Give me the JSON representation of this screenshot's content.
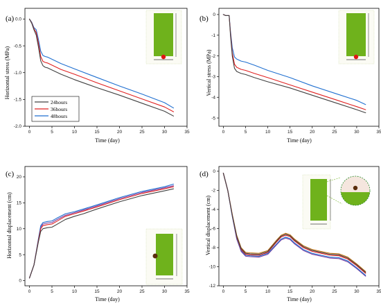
{
  "colors": {
    "h24": "#404040",
    "h36": "#e02020",
    "h48": "#1f6fd0",
    "green": "#6fb21c",
    "marker": "#e01515"
  },
  "chart_data": [
    {
      "id": "a",
      "panel_label": "(a)",
      "type": "line",
      "xlabel": "Time (day)",
      "ylabel": "Horizontal stress (MPa)",
      "xlim": [
        -1,
        35
      ],
      "ylim": [
        -2.0,
        0.2
      ],
      "xticks": [
        "0",
        "5",
        "10",
        "15",
        "20",
        "25",
        "30",
        "35"
      ],
      "yticks": [
        "0.0",
        "-0.5",
        "-1.0",
        "-1.5",
        "-2.0"
      ],
      "legend": {
        "position": "bottom-left",
        "entries": [
          "24hours",
          "36hours",
          "48hours"
        ]
      },
      "series": [
        {
          "name": "24hours",
          "color": "#404040",
          "x": [
            0,
            0.5,
            1,
            1.5,
            2,
            2.5,
            3,
            3.5,
            4,
            5,
            7,
            10,
            15,
            20,
            25,
            30,
            32
          ],
          "y": [
            0,
            -0.08,
            -0.2,
            -0.3,
            -0.52,
            -0.78,
            -0.87,
            -0.9,
            -0.91,
            -0.95,
            -1.03,
            -1.13,
            -1.28,
            -1.42,
            -1.57,
            -1.72,
            -1.81
          ]
        },
        {
          "name": "36hours",
          "color": "#e02020",
          "x": [
            0,
            0.5,
            1,
            1.5,
            2,
            2.5,
            3,
            3.5,
            4,
            5,
            7,
            10,
            15,
            20,
            25,
            30,
            32
          ],
          "y": [
            0,
            -0.07,
            -0.18,
            -0.25,
            -0.45,
            -0.7,
            -0.79,
            -0.81,
            -0.82,
            -0.86,
            -0.94,
            -1.03,
            -1.19,
            -1.34,
            -1.49,
            -1.64,
            -1.73
          ]
        },
        {
          "name": "48hours",
          "color": "#1f6fd0",
          "x": [
            0,
            0.5,
            1,
            1.5,
            2,
            2.5,
            3,
            3.5,
            4,
            5,
            7,
            10,
            15,
            20,
            25,
            30,
            32
          ],
          "y": [
            0,
            -0.06,
            -0.16,
            -0.2,
            -0.38,
            -0.6,
            -0.68,
            -0.7,
            -0.71,
            -0.75,
            -0.83,
            -0.93,
            -1.09,
            -1.25,
            -1.4,
            -1.56,
            -1.66
          ]
        }
      ]
    },
    {
      "id": "b",
      "panel_label": "(b)",
      "type": "line",
      "xlabel": "Time (day)",
      "ylabel": "Vertical stress (MPa)",
      "xlim": [
        -1,
        35
      ],
      "ylim": [
        -5.4,
        0.3
      ],
      "xticks": [
        "0",
        "5",
        "10",
        "15",
        "20",
        "25",
        "30",
        "35"
      ],
      "yticks": [
        "0",
        "-1",
        "-2",
        "-3",
        "-4",
        "-5"
      ],
      "series": [
        {
          "name": "24hours",
          "color": "#404040",
          "x": [
            0,
            0.5,
            1,
            1.3,
            1.6,
            2,
            2.5,
            3,
            3.5,
            4,
            5,
            7,
            10,
            15,
            20,
            25,
            30,
            32
          ],
          "y": [
            0,
            -0.05,
            -0.05,
            -0.05,
            -1.0,
            -2.0,
            -2.6,
            -2.75,
            -2.8,
            -2.85,
            -2.9,
            -3.05,
            -3.25,
            -3.55,
            -3.9,
            -4.25,
            -4.6,
            -4.75
          ]
        },
        {
          "name": "36hours",
          "color": "#e02020",
          "x": [
            0,
            0.5,
            1,
            1.3,
            1.6,
            2,
            2.5,
            3,
            3.5,
            4,
            5,
            7,
            10,
            15,
            20,
            25,
            30,
            32
          ],
          "y": [
            0,
            -0.05,
            -0.05,
            -0.05,
            -0.9,
            -1.85,
            -2.4,
            -2.55,
            -2.6,
            -2.65,
            -2.7,
            -2.85,
            -3.05,
            -3.4,
            -3.75,
            -4.1,
            -4.45,
            -4.6
          ]
        },
        {
          "name": "48hours",
          "color": "#1f6fd0",
          "x": [
            0,
            0.5,
            1,
            1.3,
            1.6,
            2,
            2.5,
            3,
            3.5,
            4,
            5,
            7,
            10,
            15,
            20,
            25,
            30,
            32
          ],
          "y": [
            0,
            -0.05,
            -0.05,
            -0.05,
            -0.8,
            -1.6,
            -2.05,
            -2.15,
            -2.2,
            -2.25,
            -2.3,
            -2.45,
            -2.7,
            -3.05,
            -3.45,
            -3.8,
            -4.15,
            -4.35
          ]
        }
      ]
    },
    {
      "id": "c",
      "panel_label": "(c)",
      "type": "line",
      "xlabel": "Time (day)",
      "ylabel": "Horizontal displacement (cm)",
      "xlim": [
        -1,
        35
      ],
      "ylim": [
        -1,
        22
      ],
      "xticks": [
        "0",
        "5",
        "10",
        "15",
        "20",
        "25",
        "30",
        "35"
      ],
      "yticks": [
        "0",
        "5",
        "10",
        "15",
        "20"
      ],
      "series": [
        {
          "name": "24hours",
          "color": "#404040",
          "x": [
            0,
            1,
            2,
            2.5,
            3,
            4,
            5,
            6,
            8,
            10,
            12,
            15,
            20,
            25,
            30,
            32
          ],
          "y": [
            0.5,
            3,
            7.5,
            9.5,
            10,
            10.2,
            10.3,
            10.8,
            11.8,
            12.4,
            12.9,
            13.8,
            15.2,
            16.4,
            17.3,
            17.7
          ]
        },
        {
          "name": "36hours",
          "color": "#e02020",
          "x": [
            0,
            1,
            2,
            2.5,
            3,
            4,
            5,
            6,
            8,
            10,
            12,
            15,
            20,
            25,
            30,
            32
          ],
          "y": [
            0.5,
            3,
            7.8,
            10,
            10.6,
            10.8,
            10.9,
            11.4,
            12.4,
            12.9,
            13.4,
            14.2,
            15.6,
            16.8,
            17.7,
            18.1
          ]
        },
        {
          "name": "48hours",
          "color": "#1f6fd0",
          "x": [
            0,
            1,
            2,
            2.5,
            3,
            4,
            5,
            6,
            8,
            10,
            12,
            15,
            20,
            25,
            30,
            32
          ],
          "y": [
            0.5,
            3,
            8.1,
            10.6,
            11.2,
            11.4,
            11.5,
            12,
            12.9,
            13.3,
            13.8,
            14.6,
            16,
            17.2,
            18.1,
            18.6
          ]
        },
        {
          "name": "",
          "color": "#7b3fa0",
          "x": [
            0,
            1,
            2,
            2.5,
            3,
            4,
            5,
            6,
            8,
            10,
            12,
            15,
            20,
            25,
            30,
            32
          ],
          "y": [
            0.5,
            3,
            7.9,
            10.3,
            10.9,
            11.1,
            11.2,
            11.7,
            12.6,
            13.1,
            13.6,
            14.4,
            15.8,
            17,
            17.9,
            18.3
          ]
        }
      ]
    },
    {
      "id": "d",
      "panel_label": "(d)",
      "type": "line",
      "xlabel": "Time (day)",
      "ylabel": "Vertical displacement (cm)",
      "xlim": [
        -1,
        35
      ],
      "ylim": [
        -12,
        0.5
      ],
      "xticks": [
        "0",
        "5",
        "10",
        "15",
        "20",
        "25",
        "30",
        "35"
      ],
      "yticks": [
        "0",
        "-2",
        "-4",
        "-6",
        "-8",
        "-10",
        "-12"
      ],
      "series": [
        {
          "name": "24hours",
          "color": "#404040",
          "x": [
            0,
            1,
            2,
            3,
            4,
            5,
            6,
            8,
            10,
            12,
            13,
            14,
            15,
            16,
            18,
            20,
            22,
            24,
            26,
            28,
            30,
            32
          ],
          "y": [
            -0.2,
            -2,
            -4.6,
            -6.8,
            -8.1,
            -8.6,
            -8.65,
            -8.7,
            -8.4,
            -7.3,
            -6.8,
            -6.6,
            -6.75,
            -7.2,
            -7.9,
            -8.3,
            -8.5,
            -8.7,
            -8.75,
            -9.1,
            -9.8,
            -10.6
          ]
        },
        {
          "name": "36hours",
          "color": "#e02020",
          "x": [
            0,
            1,
            2,
            3,
            4,
            5,
            6,
            8,
            10,
            12,
            13,
            14,
            15,
            16,
            18,
            20,
            22,
            24,
            26,
            28,
            30,
            32
          ],
          "y": [
            -0.2,
            -2,
            -4.6,
            -6.9,
            -8.2,
            -8.7,
            -8.75,
            -8.8,
            -8.5,
            -7.4,
            -6.9,
            -6.7,
            -6.85,
            -7.3,
            -8,
            -8.4,
            -8.6,
            -8.8,
            -8.85,
            -9.2,
            -9.9,
            -10.7
          ]
        },
        {
          "name": "48hours",
          "color": "#1f6fd0",
          "x": [
            0,
            1,
            2,
            3,
            4,
            5,
            6,
            8,
            10,
            12,
            13,
            14,
            15,
            16,
            18,
            20,
            22,
            24,
            26,
            28,
            30,
            32
          ],
          "y": [
            -0.2,
            -2,
            -4.7,
            -7,
            -8.3,
            -8.8,
            -8.85,
            -8.9,
            -8.6,
            -7.6,
            -7.1,
            -6.9,
            -7.05,
            -7.5,
            -8.2,
            -8.6,
            -8.8,
            -9,
            -9.05,
            -9.4,
            -10.1,
            -10.9
          ]
        },
        {
          "name": "",
          "color": "#7b3fa0",
          "x": [
            0,
            1,
            2,
            3,
            4,
            5,
            6,
            8,
            10,
            12,
            13,
            14,
            15,
            16,
            18,
            20,
            22,
            24,
            26,
            28,
            30,
            32
          ],
          "y": [
            -0.2,
            -2,
            -4.7,
            -7.1,
            -8.4,
            -8.9,
            -8.95,
            -9,
            -8.7,
            -7.7,
            -7.2,
            -7,
            -7.15,
            -7.6,
            -8.3,
            -8.7,
            -8.9,
            -9.1,
            -9.15,
            -9.5,
            -10.2,
            -11
          ]
        },
        {
          "name": "",
          "color": "#c07010",
          "x": [
            0,
            1,
            2,
            3,
            4,
            5,
            6,
            8,
            10,
            12,
            13,
            14,
            15,
            16,
            18,
            20,
            22,
            24,
            26,
            28,
            30,
            32
          ],
          "y": [
            -0.2,
            -2,
            -4.5,
            -6.7,
            -8.0,
            -8.5,
            -8.55,
            -8.6,
            -8.3,
            -7.2,
            -6.7,
            -6.5,
            -6.65,
            -7.1,
            -7.8,
            -8.2,
            -8.4,
            -8.6,
            -8.65,
            -9.0,
            -9.7,
            -10.5
          ]
        }
      ]
    }
  ]
}
